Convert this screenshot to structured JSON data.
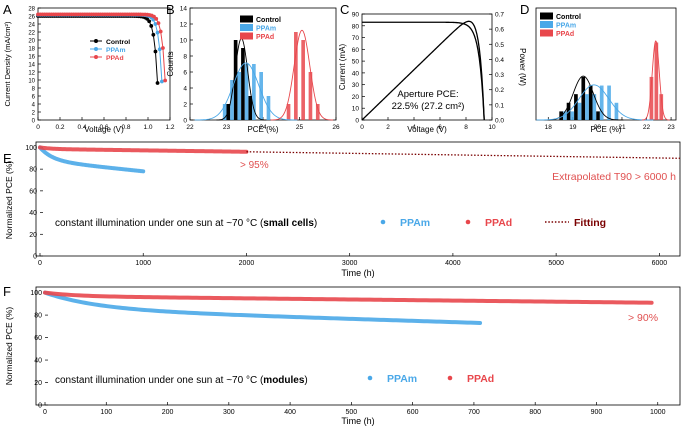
{
  "colors": {
    "control": "#000000",
    "ppam": "#4aa8e8",
    "ppad": "#e8474c",
    "fit": "#7a0000",
    "red_text": "#e05050",
    "blue_text": "#4aa8e8"
  },
  "chart_data": [
    {
      "panel": "A",
      "type": "line",
      "title": "",
      "xlabel": "Voltage (V)",
      "ylabel": "Current Density (mA/cm²)",
      "xlim": [
        0,
        1.2
      ],
      "ylim": [
        0,
        28
      ],
      "xticks": [
        "0",
        "0.2",
        "0.4",
        "0.6",
        "0.8",
        "1.0",
        "1.2"
      ],
      "yticks": [
        "0",
        "2",
        "4",
        "6",
        "8",
        "10",
        "12",
        "14",
        "16",
        "18",
        "20",
        "22",
        "24",
        "26",
        "28"
      ],
      "series": [
        {
          "name": "Control",
          "jsc": 26.0,
          "voc": 1.1
        },
        {
          "name": "PPAm",
          "jsc": 26.3,
          "voc": 1.14
        },
        {
          "name": "PPAd",
          "jsc": 26.4,
          "voc": 1.17
        }
      ],
      "legend": [
        "Control",
        "PPAm",
        "PPAd"
      ]
    },
    {
      "panel": "B",
      "type": "bar",
      "xlabel": "PCE (%)",
      "ylabel": "Counts",
      "xlim": [
        22,
        26
      ],
      "ylim": [
        0,
        14
      ],
      "xticks": [
        "22",
        "23",
        "24",
        "25",
        "26"
      ],
      "yticks": [
        "0",
        "2",
        "4",
        "6",
        "8",
        "10",
        "12",
        "14"
      ],
      "series": [
        {
          "name": "Control",
          "x": [
            23.1,
            23.3,
            23.5,
            23.7
          ],
          "values": [
            2,
            10,
            9,
            3
          ]
        },
        {
          "name": "PPAm",
          "x": [
            22.9,
            23.1,
            23.3,
            23.5,
            23.7,
            23.9,
            24.1
          ],
          "values": [
            2,
            5,
            6,
            7,
            7,
            6,
            3
          ]
        },
        {
          "name": "PPAd",
          "x": [
            24.7,
            24.9,
            25.1,
            25.3,
            25.5
          ],
          "values": [
            2,
            11,
            10,
            6,
            2
          ]
        }
      ],
      "legend": [
        "Control",
        "PPAm",
        "PPAd"
      ]
    },
    {
      "panel": "C",
      "type": "line",
      "xlabel": "Voltage (V)",
      "ylabel": "Current (mA)",
      "y2label": "Power (W)",
      "xlim": [
        0,
        10
      ],
      "ylim": [
        0,
        90
      ],
      "y2lim": [
        0,
        0.7
      ],
      "xticks": [
        "0",
        "2",
        "4",
        "6",
        "8",
        "10"
      ],
      "yticks": [
        "0",
        "10",
        "20",
        "30",
        "40",
        "50",
        "60",
        "70",
        "80",
        "90"
      ],
      "y2ticks": [
        "0.0",
        "0.1",
        "0.2",
        "0.3",
        "0.4",
        "0.5",
        "0.6",
        "0.7"
      ],
      "annotation_line1": "Aperture PCE:",
      "annotation_line2": "22.5% (27.2 cm²)",
      "isc": 83,
      "voc": 9.4,
      "pmax": 0.62
    },
    {
      "panel": "D",
      "type": "bar",
      "xlabel": "PCE (%)",
      "ylabel": "",
      "xlim": [
        17.5,
        23.2
      ],
      "xticks": [
        "18",
        "19",
        "20",
        "21",
        "22",
        "23"
      ],
      "series": [
        {
          "name": "Control",
          "x": [
            18.6,
            18.9,
            19.2,
            19.5,
            19.8,
            20.1
          ],
          "values": [
            1,
            2,
            3,
            5,
            4,
            1
          ]
        },
        {
          "name": "PPAm",
          "x": [
            18.6,
            18.9,
            19.2,
            19.5,
            19.8,
            20.1,
            20.4,
            20.7
          ],
          "values": [
            1,
            1,
            2,
            3,
            3,
            4,
            4,
            2
          ]
        },
        {
          "name": "PPAd",
          "x": [
            22.2,
            22.4,
            22.6
          ],
          "values": [
            5,
            9,
            3
          ]
        }
      ],
      "legend": [
        "Control",
        "PPAm",
        "PPAd"
      ]
    },
    {
      "panel": "E",
      "type": "scatter",
      "xlabel": "Time (h)",
      "ylabel": "Normalized PCE (%)",
      "xlim": [
        0,
        6200
      ],
      "ylim": [
        0,
        105
      ],
      "xticks": [
        "0",
        "1000",
        "2000",
        "3000",
        "4000",
        "5000",
        "6000"
      ],
      "yticks": [
        "0",
        "20",
        "40",
        "60",
        "80",
        "100"
      ],
      "series": [
        {
          "name": "PPAm",
          "end_x": 1000,
          "end_y": 78
        },
        {
          "name": "PPAd",
          "end_x": 2000,
          "end_y": 96
        },
        {
          "name": "Fitting",
          "end_x": 6200,
          "end_y": 90
        }
      ],
      "annotation_1": "> 95%",
      "annotation_2": "Extrapolated T90 > 6000 h",
      "caption_plain": "constant illumination under one sun at ~70 °C (",
      "caption_bold": "small cells",
      "caption_end": ")",
      "legend": [
        "PPAm",
        "PPAd",
        "Fitting"
      ]
    },
    {
      "panel": "F",
      "type": "scatter",
      "xlabel": "Time (h)",
      "ylabel": "Normalized PCE (%)",
      "xlim": [
        0,
        1020
      ],
      "ylim": [
        0,
        105
      ],
      "xticks": [
        "0",
        "100",
        "200",
        "300",
        "400",
        "500",
        "600",
        "700",
        "800",
        "900",
        "1000"
      ],
      "yticks": [
        "0",
        "20",
        "40",
        "60",
        "80",
        "100"
      ],
      "series": [
        {
          "name": "PPAm",
          "end_x": 710,
          "end_y": 73
        },
        {
          "name": "PPAd",
          "end_x": 990,
          "end_y": 91
        }
      ],
      "annotation_1": "> 90%",
      "caption_plain": "constant illumination under one sun at ~70 °C (",
      "caption_bold": "modules",
      "caption_end": ")",
      "legend": [
        "PPAm",
        "PPAd"
      ]
    }
  ]
}
